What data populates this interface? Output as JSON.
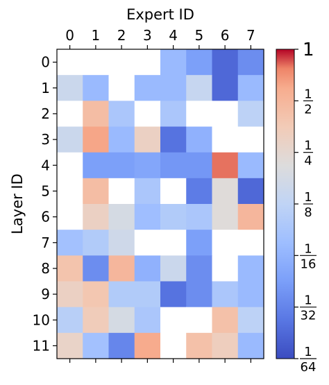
{
  "chart_data": {
    "type": "heatmap",
    "xlabel": "Expert ID",
    "ylabel": "Layer ID",
    "x_ticks": [
      "0",
      "1",
      "2",
      "3",
      "4",
      "5",
      "6",
      "7"
    ],
    "y_ticks": [
      "0",
      "1",
      "2",
      "3",
      "4",
      "5",
      "6",
      "7",
      "8",
      "9",
      "10",
      "11"
    ],
    "x_axis_position": "top",
    "colormap": "coolwarm",
    "color_scale": "log2",
    "value_range": [
      0.015625,
      1
    ],
    "missing_value_color": "#ffffff",
    "colorbar": {
      "position": "right",
      "ticks": [
        {
          "value": 1,
          "label": "1",
          "num": "1",
          "den": ""
        },
        {
          "value": 0.5,
          "label": "1/2",
          "num": "1",
          "den": "2"
        },
        {
          "value": 0.25,
          "label": "1/4",
          "num": "1",
          "den": "4"
        },
        {
          "value": 0.125,
          "label": "1/8",
          "num": "1",
          "den": "8"
        },
        {
          "value": 0.0625,
          "label": "1/16",
          "num": "1",
          "den": "16"
        },
        {
          "value": 0.03125,
          "label": "1/32",
          "num": "1",
          "den": "32"
        },
        {
          "value": 0.015625,
          "label": "1/64",
          "num": "1",
          "den": "64"
        }
      ]
    },
    "values": [
      [
        null,
        null,
        null,
        null,
        0.07,
        0.045,
        0.022,
        0.035
      ],
      [
        0.15,
        0.07,
        null,
        0.07,
        0.07,
        0.14,
        0.022,
        0.07
      ],
      [
        null,
        0.45,
        0.09,
        null,
        0.09,
        null,
        null,
        0.12
      ],
      [
        0.15,
        0.62,
        0.07,
        0.3,
        0.025,
        0.06,
        null,
        null
      ],
      [
        null,
        0.045,
        0.045,
        0.05,
        0.04,
        0.04,
        0.8,
        0.07
      ],
      [
        null,
        0.45,
        null,
        0.09,
        null,
        0.028,
        0.22,
        0.022
      ],
      [
        null,
        0.3,
        0.18,
        0.075,
        0.1,
        0.09,
        0.22,
        0.5
      ],
      [
        0.08,
        0.1,
        0.16,
        null,
        null,
        0.045,
        null,
        null
      ],
      [
        0.4,
        0.035,
        0.5,
        0.06,
        0.15,
        0.035,
        null,
        0.07
      ],
      [
        0.3,
        0.38,
        0.1,
        0.1,
        0.025,
        0.035,
        0.09,
        0.07
      ],
      [
        0.11,
        0.34,
        0.18,
        0.09,
        null,
        null,
        0.42,
        0.12
      ],
      [
        0.28,
        0.08,
        0.032,
        0.6,
        null,
        0.42,
        0.32,
        0.07
      ]
    ]
  }
}
